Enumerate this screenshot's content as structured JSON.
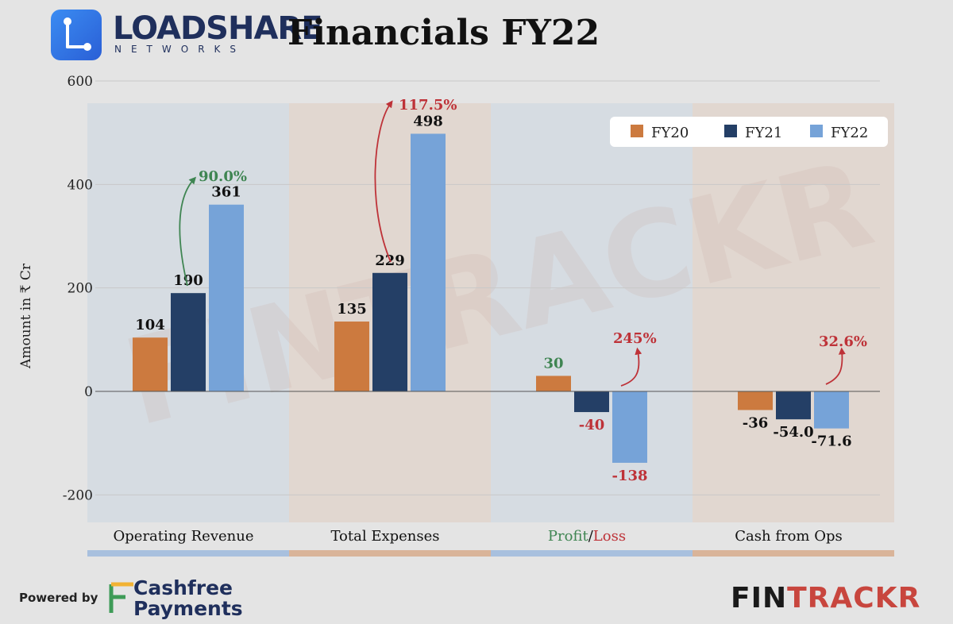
{
  "header": {
    "brand_name": "LOADSHARE",
    "brand_sub": "NETWORKS",
    "title": "Financials FY22"
  },
  "footer": {
    "powered_by": "Powered by",
    "partner_line1": "Cashfree",
    "partner_line2": "Payments",
    "brand_part1": "FIN",
    "brand_part2": "TRACKR"
  },
  "watermark": "FINTRACKR",
  "colors": {
    "fy20": "#cc7a3f",
    "fy21": "#243f66",
    "fy22": "#76a3d8",
    "positive": "#3f8552",
    "negative": "#be3238",
    "fintrackr_accent": "#c8463e",
    "brand_navy": "#1f2f5c"
  },
  "chart_data": {
    "type": "bar",
    "title": "Financials FY22",
    "ylabel": "Amount in ₹ Cr",
    "ylim": [
      -200,
      600
    ],
    "yticks": [
      -200,
      0,
      200,
      400,
      600
    ],
    "ytick_labels": [
      "-200",
      "0",
      "200",
      "400",
      "600"
    ],
    "legend_position": "top-right",
    "categories": [
      {
        "label": "Operating Revenue"
      },
      {
        "label": "Total Expenses"
      },
      {
        "label_parts": [
          "Profit",
          "/",
          "Loss"
        ]
      },
      {
        "label": "Cash from Ops"
      }
    ],
    "series": [
      {
        "name": "FY20",
        "values": [
          104,
          135,
          30,
          -36
        ],
        "labels": [
          "104",
          "135",
          "30",
          "-36"
        ]
      },
      {
        "name": "FY21",
        "values": [
          190,
          229,
          -40,
          -54.0
        ],
        "labels": [
          "190",
          "229",
          "-40",
          "-54.0"
        ]
      },
      {
        "name": "FY22",
        "values": [
          361,
          498,
          -138,
          -71.6
        ],
        "labels": [
          "361",
          "498",
          "-138",
          "-71.6"
        ]
      }
    ],
    "growth_annotations": [
      {
        "category_index": 0,
        "text": "90.0%",
        "tone": "positive"
      },
      {
        "category_index": 1,
        "text": "117.5%",
        "tone": "negative"
      },
      {
        "category_index": 2,
        "text": "245%",
        "tone": "negative"
      },
      {
        "category_index": 3,
        "text": "32.6%",
        "tone": "negative"
      }
    ]
  }
}
